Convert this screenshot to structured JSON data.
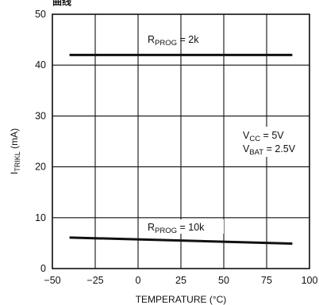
{
  "chart_data": {
    "type": "line",
    "title": "曲线",
    "xlabel": "TEMPERATURE (°C)",
    "ylabel": {
      "main": "I",
      "sub": "TRIKL",
      "unit": " (mA)"
    },
    "xlim": [
      -50,
      100
    ],
    "ylim": [
      0,
      50
    ],
    "xticks": [
      -50,
      -25,
      0,
      25,
      50,
      75,
      100
    ],
    "yticks": [
      0,
      10,
      20,
      30,
      40,
      50
    ],
    "grid": true,
    "series": [
      {
        "name": "RPROG = 2k",
        "label_main": "R",
        "label_sub": "PROG",
        "label_tail": " = 2k",
        "x": [
          -40,
          90
        ],
        "y": [
          42,
          42
        ]
      },
      {
        "name": "RPROG = 10k",
        "label_main": "R",
        "label_sub": "PROG",
        "label_tail": " = 10k",
        "x": [
          -40,
          90
        ],
        "y": [
          6.1,
          4.9
        ]
      }
    ],
    "annotations": [
      {
        "main": "V",
        "sub": "CC",
        "tail": " = 5V"
      },
      {
        "main": "V",
        "sub": "BAT",
        "tail": " = 2.5V"
      }
    ]
  }
}
